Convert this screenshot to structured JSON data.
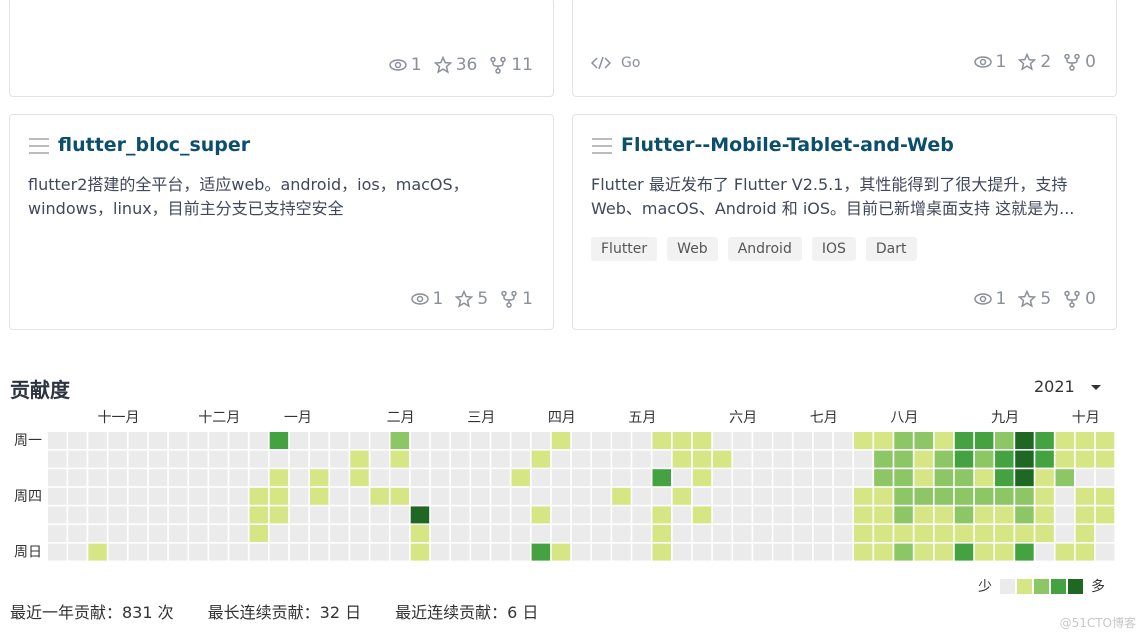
{
  "cards": [
    {
      "stats": {
        "watch": 1,
        "star": 36,
        "fork": 11
      }
    },
    {
      "language": "Go",
      "stats": {
        "watch": 1,
        "star": 2,
        "fork": 0
      }
    },
    {
      "title": "flutter_bloc_super",
      "description": "flutter2搭建的全平台，适应web。android，ios，macOS，windows，linux，目前主分支已支持空安全",
      "stats": {
        "watch": 1,
        "star": 5,
        "fork": 1
      }
    },
    {
      "title": "Flutter--Mobile-Tablet-and-Web",
      "description": "Flutter 最近发布了 Flutter V2.5.1，其性能得到了很大提升，支持 Web、macOS、Android 和 iOS。目前已新增桌面支持 这就是为...",
      "tags": [
        "Flutter",
        "Web",
        "Android",
        "IOS",
        "Dart"
      ],
      "stats": {
        "watch": 1,
        "star": 5,
        "fork": 0
      }
    }
  ],
  "contributions": {
    "title": "贡献度",
    "year": "2021",
    "months": [
      "十一月",
      "十二月",
      "一月",
      "二月",
      "三月",
      "四月",
      "五月",
      "六月",
      "七月",
      "八月",
      "九月",
      "十月"
    ],
    "weekdays": [
      "周一",
      "周四",
      "周日"
    ],
    "level_colors": [
      "#ebebeb",
      "#d6e685",
      "#8cc665",
      "#44a340",
      "#1e6823"
    ],
    "levels": [
      [
        0,
        0,
        0,
        0,
        0,
        0,
        0,
        0,
        0,
        0,
        0,
        3,
        0,
        0,
        0,
        0,
        0,
        2,
        0,
        0,
        0,
        0,
        0,
        0,
        0,
        1,
        0,
        0,
        0,
        0,
        1,
        1,
        1,
        0,
        0,
        0,
        0,
        0,
        0,
        0,
        1,
        1,
        2,
        2,
        1,
        3,
        3,
        2,
        4,
        3,
        1,
        1,
        1
      ],
      [
        0,
        0,
        0,
        0,
        0,
        0,
        0,
        0,
        0,
        0,
        0,
        0,
        0,
        0,
        0,
        1,
        0,
        1,
        0,
        0,
        0,
        0,
        0,
        0,
        1,
        0,
        0,
        0,
        0,
        0,
        0,
        1,
        1,
        1,
        0,
        0,
        0,
        0,
        0,
        0,
        0,
        2,
        2,
        1,
        2,
        3,
        2,
        3,
        4,
        3,
        1,
        1,
        1
      ],
      [
        0,
        0,
        0,
        0,
        0,
        0,
        0,
        0,
        0,
        0,
        0,
        1,
        0,
        1,
        0,
        1,
        0,
        0,
        0,
        0,
        0,
        0,
        0,
        1,
        0,
        0,
        0,
        0,
        0,
        0,
        3,
        0,
        1,
        0,
        0,
        0,
        0,
        0,
        0,
        0,
        0,
        2,
        2,
        1,
        2,
        2,
        1,
        3,
        4,
        1,
        2,
        0,
        0
      ],
      [
        0,
        0,
        0,
        0,
        0,
        0,
        0,
        0,
        0,
        0,
        1,
        1,
        0,
        1,
        0,
        0,
        1,
        1,
        0,
        0,
        0,
        0,
        0,
        0,
        0,
        0,
        0,
        0,
        1,
        0,
        0,
        1,
        0,
        0,
        0,
        0,
        0,
        0,
        0,
        0,
        1,
        1,
        2,
        2,
        2,
        2,
        2,
        2,
        2,
        1,
        0,
        1,
        1
      ],
      [
        0,
        0,
        0,
        0,
        0,
        0,
        0,
        0,
        0,
        0,
        1,
        1,
        0,
        0,
        0,
        0,
        0,
        0,
        4,
        0,
        0,
        0,
        0,
        0,
        1,
        0,
        0,
        0,
        0,
        0,
        1,
        0,
        1,
        0,
        0,
        0,
        0,
        0,
        0,
        0,
        1,
        1,
        2,
        1,
        1,
        2,
        1,
        1,
        2,
        1,
        0,
        1,
        1
      ],
      [
        0,
        0,
        0,
        0,
        0,
        0,
        0,
        0,
        0,
        0,
        1,
        0,
        0,
        0,
        0,
        0,
        0,
        0,
        1,
        0,
        0,
        0,
        0,
        0,
        0,
        0,
        0,
        0,
        0,
        0,
        1,
        0,
        0,
        0,
        0,
        0,
        0,
        0,
        0,
        0,
        1,
        1,
        1,
        1,
        1,
        1,
        1,
        1,
        1,
        1,
        0,
        1,
        0
      ],
      [
        0,
        0,
        1,
        0,
        0,
        0,
        0,
        0,
        0,
        0,
        0,
        0,
        0,
        0,
        0,
        0,
        0,
        0,
        1,
        0,
        0,
        0,
        0,
        0,
        3,
        1,
        0,
        0,
        0,
        0,
        1,
        0,
        0,
        0,
        0,
        0,
        0,
        0,
        0,
        0,
        1,
        1,
        2,
        1,
        1,
        3,
        1,
        1,
        3,
        0,
        1,
        1,
        0
      ]
    ],
    "legend_less": "少",
    "legend_more": "多",
    "summary": [
      "最近一年贡献：831 次",
      "最长连续贡献：32 日",
      "最近连续贡献：6 日"
    ]
  },
  "watermark": "@51CTO博客"
}
